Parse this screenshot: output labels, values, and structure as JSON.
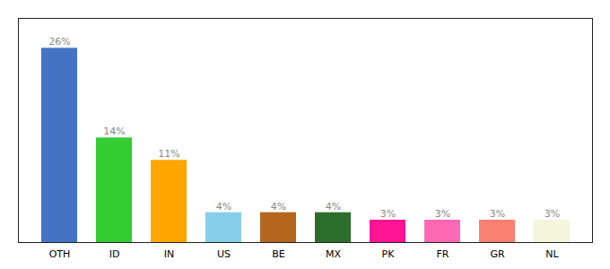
{
  "chart_data": {
    "type": "bar",
    "categories": [
      "OTH",
      "ID",
      "IN",
      "US",
      "BE",
      "MX",
      "PK",
      "FR",
      "GR",
      "NL"
    ],
    "values": [
      26,
      14,
      11,
      4,
      4,
      4,
      3,
      3,
      3,
      3
    ],
    "value_labels": [
      "26%",
      "14%",
      "11%",
      "4%",
      "4%",
      "4%",
      "3%",
      "3%",
      "3%",
      "3%"
    ],
    "colors": [
      "#4472c4",
      "#33cc33",
      "#ffa500",
      "#87ceeb",
      "#b5651d",
      "#2d6e2d",
      "#ff1493",
      "#ff69b4",
      "#fa8072",
      "#f5f5dc"
    ],
    "ylim": [
      0,
      30
    ],
    "data_labels": true,
    "tick_labels": "x",
    "grid": false
  }
}
